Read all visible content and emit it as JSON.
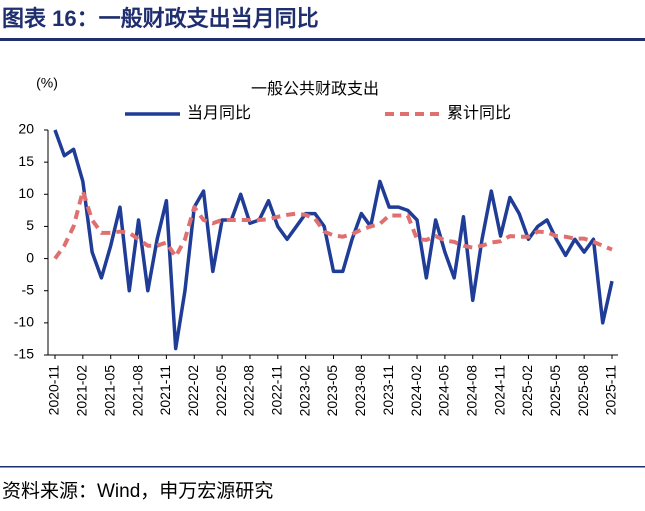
{
  "header": {
    "title": "图表 16：一般财政支出当月同比"
  },
  "chart_data": {
    "type": "line",
    "title": "一般公共财政支出",
    "y_label": "(%)",
    "categories": [
      "2020-11",
      null,
      null,
      "2021-02",
      null,
      null,
      "2021-05",
      null,
      null,
      "2021-08",
      null,
      null,
      "2021-11",
      null,
      null,
      "2022-02",
      null,
      null,
      "2022-05",
      null,
      null,
      "2022-08",
      null,
      null,
      "2022-11",
      null,
      null,
      "2023-02",
      null,
      null,
      "2023-05",
      null,
      null,
      "2023-08",
      null,
      null,
      "2023-11",
      null,
      null,
      "2024-02",
      null,
      null,
      "2024-05",
      null,
      null,
      "2024-08",
      null,
      null,
      "2024-11",
      null,
      null,
      "2025-02",
      null,
      null,
      "2025-05",
      null,
      null,
      "2025-08",
      null,
      null,
      "2025-11"
    ],
    "series": [
      {
        "name": "当月同比",
        "color": "#1f3c96",
        "dash": "solid",
        "values": [
          20,
          16,
          17,
          12,
          1,
          -3,
          2,
          8,
          -5,
          6,
          -5,
          3,
          9,
          -14,
          -5,
          8,
          10.5,
          -2,
          6,
          6,
          10,
          5.5,
          6,
          9,
          5,
          3,
          5,
          7,
          7,
          5,
          -2,
          -2,
          3,
          7,
          5,
          12,
          8,
          8,
          7.5,
          6,
          -3,
          6,
          1,
          -3,
          6.5,
          -6.5,
          3,
          10.5,
          3.5,
          9.5,
          7,
          3,
          5,
          6,
          3,
          0.5,
          3,
          1,
          3,
          -10,
          -3.5
        ]
      },
      {
        "name": "累计同比",
        "color": "#e07070",
        "dash": "dashed",
        "values": [
          0,
          2,
          5,
          10.5,
          6,
          4,
          4,
          4.2,
          4,
          3,
          2,
          2,
          2.5,
          0.3,
          3,
          8,
          6,
          5.5,
          6,
          6,
          6,
          6,
          6,
          6.1,
          6.5,
          6.8,
          7,
          6.8,
          6.2,
          4.2,
          3.6,
          3.4,
          3.8,
          4.5,
          5,
          5.4,
          6.7,
          6.7,
          6.7,
          3,
          2.9,
          3.5,
          2.8,
          2.6,
          2,
          1.7,
          2,
          2.5,
          2.7,
          3.5,
          3.4,
          3.4,
          4.2,
          4.1,
          3.5,
          3.4,
          3.1,
          3.1,
          2.6,
          2,
          1.4
        ]
      }
    ],
    "ylim": [
      -15,
      20
    ],
    "yticks": [
      -15,
      -10,
      -5,
      0,
      5,
      10,
      15,
      20
    ],
    "legend": "top"
  },
  "footer": {
    "source": "资料来源：Wind，申万宏源研究"
  }
}
